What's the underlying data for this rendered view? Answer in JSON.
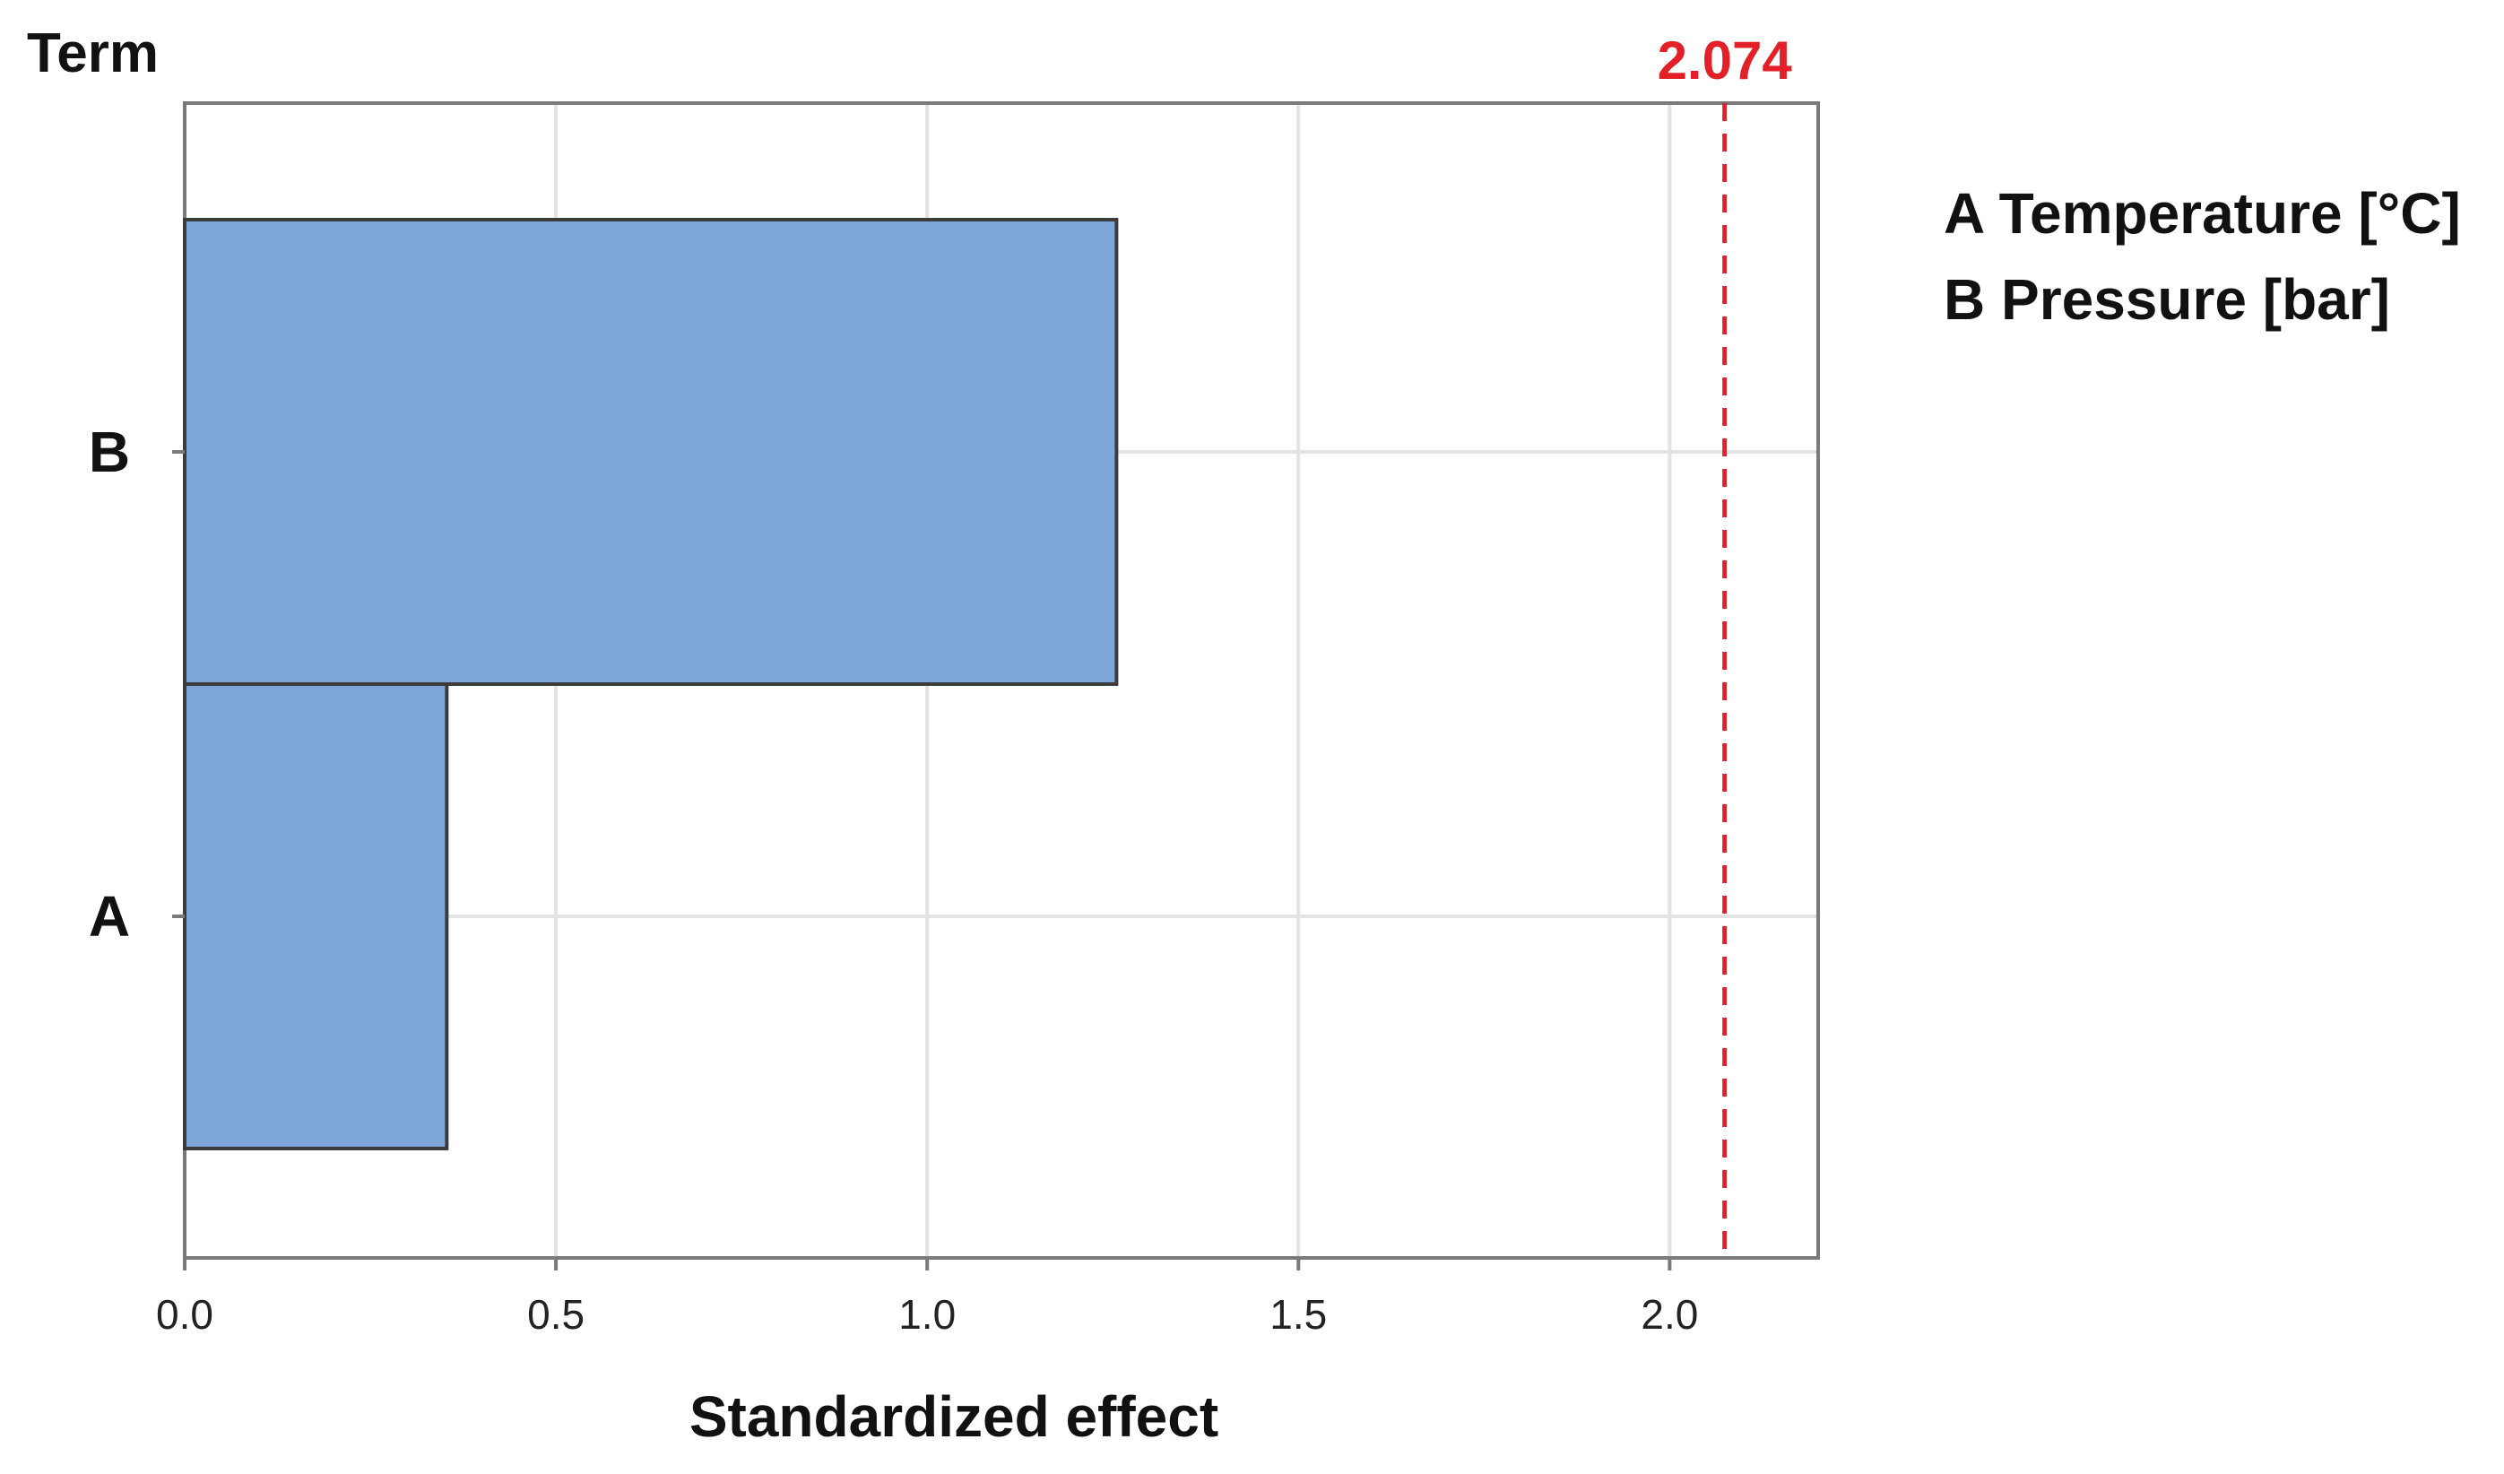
{
  "chart_data": {
    "type": "bar",
    "orientation": "horizontal",
    "categories": [
      "B",
      "A"
    ],
    "values": [
      1.255,
      0.353
    ],
    "ylabel": "Term",
    "xlabel": "Standardized effect",
    "xlim": [
      0,
      2.2
    ],
    "xticks": [
      0.0,
      0.5,
      1.0,
      1.5,
      2.0
    ],
    "xtick_labels": [
      "0.0",
      "0.5",
      "1.0",
      "1.5",
      "2.0"
    ],
    "reference_line": {
      "value": 2.074,
      "label": "2.074",
      "style": "dashed",
      "color": "#e32028"
    },
    "grid": true,
    "bar_color": "#7ea6d8",
    "bar_edge_color": "#3c3c3c",
    "legend_entries": [
      {
        "key": "A",
        "label": "Temperature [°C]"
      },
      {
        "key": "B",
        "label": "Pressure [bar]"
      }
    ],
    "legend_placement": "right"
  }
}
